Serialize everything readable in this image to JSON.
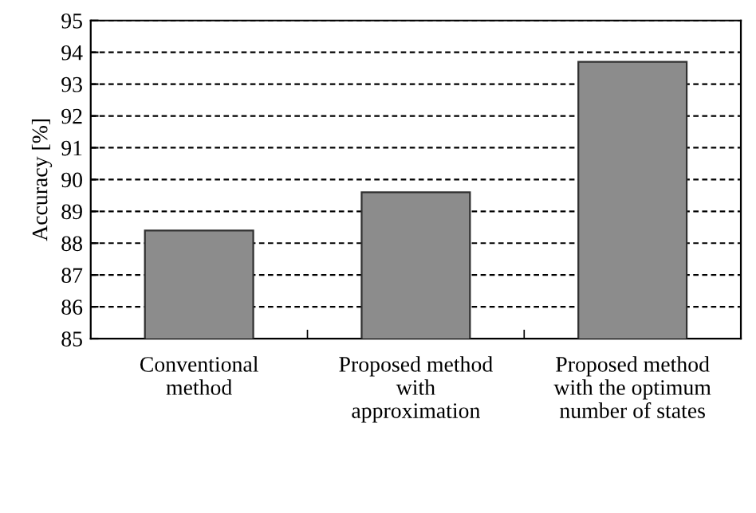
{
  "chart_data": {
    "type": "bar",
    "ylabel": "Accuracy [%]",
    "categories": [
      "Conventional\nmethod",
      "Proposed method\nwith\napproximation",
      "Proposed method\nwith the optimum\nnumber of states"
    ],
    "values": [
      88.4,
      89.6,
      93.7
    ],
    "color": "#8c8c8c",
    "ylim": [
      85,
      95
    ],
    "yticks": [
      85,
      86,
      87,
      88,
      89,
      90,
      91,
      92,
      93,
      94,
      95
    ],
    "grid": "y",
    "line_style": "dashed"
  }
}
